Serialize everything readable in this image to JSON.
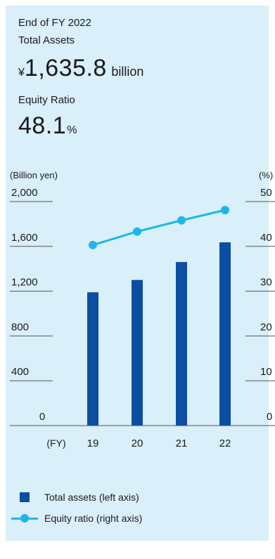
{
  "header": {
    "period": "End of FY 2022",
    "total_assets_label": "Total Assets",
    "currency_symbol": "¥",
    "total_assets_value": "1,635.8",
    "total_assets_unit": "billion",
    "equity_ratio_label": "Equity Ratio",
    "equity_ratio_value": "48.1",
    "equity_ratio_unit": "%"
  },
  "chart_data": {
    "type": "bar",
    "x_axis_label": "(FY)",
    "categories": [
      "19",
      "20",
      "21",
      "22"
    ],
    "y_left": {
      "label": "(Billion yen)",
      "ticks": [
        "2,000",
        "1,600",
        "1,200",
        "800",
        "400",
        "0"
      ],
      "range": [
        0,
        2000
      ]
    },
    "y_right": {
      "label": "(%)",
      "ticks": [
        "50",
        "40",
        "30",
        "20",
        "10",
        "0"
      ],
      "range": [
        0,
        50
      ]
    },
    "series": [
      {
        "name": "Total assets (left axis)",
        "kind": "bar",
        "axis": "left",
        "color": "#0b4ea2",
        "values": [
          1190,
          1300,
          1460,
          1636
        ]
      },
      {
        "name": "Equity ratio (right axis)",
        "kind": "line",
        "axis": "right",
        "color": "#1fb6e7",
        "values": [
          40.3,
          43.3,
          45.8,
          48.1
        ]
      }
    ],
    "legend_position": "bottom-left",
    "grid": false
  }
}
